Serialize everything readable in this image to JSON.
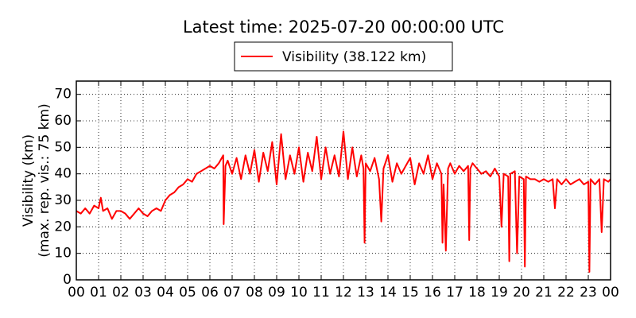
{
  "chart_data": {
    "type": "line",
    "title": "Latest time: 2025-07-20 00:00:00 UTC",
    "ylabel": [
      "Visibility (km)",
      "(max. rep. vis.: 75 km)"
    ],
    "grid": true,
    "xlim": [
      0,
      24
    ],
    "ylim": [
      0,
      75
    ],
    "yticks": [
      0,
      10,
      20,
      30,
      40,
      50,
      60,
      70
    ],
    "xticks": [
      {
        "value": 0,
        "label": "00"
      },
      {
        "value": 1,
        "label": "01"
      },
      {
        "value": 2,
        "label": "02"
      },
      {
        "value": 3,
        "label": "03"
      },
      {
        "value": 4,
        "label": "04"
      },
      {
        "value": 5,
        "label": "05"
      },
      {
        "value": 6,
        "label": "06"
      },
      {
        "value": 7,
        "label": "07"
      },
      {
        "value": 8,
        "label": "08"
      },
      {
        "value": 9,
        "label": "09"
      },
      {
        "value": 10,
        "label": "10"
      },
      {
        "value": 11,
        "label": "11"
      },
      {
        "value": 12,
        "label": "12"
      },
      {
        "value": 13,
        "label": "13"
      },
      {
        "value": 14,
        "label": "14"
      },
      {
        "value": 15,
        "label": "15"
      },
      {
        "value": 16,
        "label": "16"
      },
      {
        "value": 17,
        "label": "17"
      },
      {
        "value": 18,
        "label": "18"
      },
      {
        "value": 19,
        "label": "19"
      },
      {
        "value": 20,
        "label": "20"
      },
      {
        "value": 21,
        "label": "21"
      },
      {
        "value": 22,
        "label": "22"
      },
      {
        "value": 23,
        "label": "23"
      },
      {
        "value": 24,
        "label": "00"
      }
    ],
    "x": [
      0,
      0.2,
      0.4,
      0.6,
      0.8,
      1.0,
      1.1,
      1.2,
      1.4,
      1.6,
      1.8,
      2.0,
      2.2,
      2.4,
      2.6,
      2.8,
      3.0,
      3.2,
      3.4,
      3.6,
      3.8,
      4.0,
      4.2,
      4.4,
      4.6,
      4.8,
      5.0,
      5.2,
      5.4,
      5.6,
      5.8,
      6.0,
      6.2,
      6.4,
      6.6,
      6.62,
      6.7,
      6.8,
      7.0,
      7.2,
      7.4,
      7.6,
      7.8,
      8.0,
      8.2,
      8.4,
      8.6,
      8.8,
      9.0,
      9.2,
      9.4,
      9.6,
      9.8,
      10.0,
      10.2,
      10.4,
      10.6,
      10.8,
      11.0,
      11.2,
      11.4,
      11.6,
      11.8,
      12.0,
      12.2,
      12.4,
      12.6,
      12.8,
      12.9,
      12.95,
      13.0,
      13.2,
      13.4,
      13.6,
      13.7,
      13.8,
      14.0,
      14.2,
      14.4,
      14.6,
      14.8,
      15.0,
      15.2,
      15.4,
      15.6,
      15.8,
      16.0,
      16.2,
      16.4,
      16.45,
      16.5,
      16.6,
      16.7,
      16.8,
      17.0,
      17.2,
      17.4,
      17.6,
      17.65,
      17.7,
      17.8,
      18.0,
      18.2,
      18.4,
      18.6,
      18.8,
      19.0,
      19.1,
      19.2,
      19.4,
      19.45,
      19.5,
      19.7,
      19.8,
      19.9,
      20.1,
      20.15,
      20.2,
      20.4,
      20.6,
      20.8,
      21.0,
      21.2,
      21.4,
      21.5,
      21.6,
      21.8,
      22.0,
      22.2,
      22.4,
      22.6,
      22.8,
      23.0,
      23.05,
      23.1,
      23.3,
      23.5,
      23.6,
      23.7,
      23.9,
      24.0
    ],
    "series": [
      {
        "name": "Visibility (38.122 km)",
        "color": "#ff0000",
        "values": [
          26,
          25,
          27,
          25,
          28,
          27,
          31,
          26,
          27,
          23,
          26,
          26,
          25,
          23,
          25,
          27,
          25,
          24,
          26,
          27,
          26,
          30,
          32,
          33,
          35,
          36,
          38,
          37,
          40,
          41,
          42,
          43,
          42,
          44,
          47,
          21,
          43,
          45,
          40,
          46,
          38,
          47,
          40,
          49,
          37,
          48,
          41,
          52,
          36,
          55,
          38,
          47,
          40,
          50,
          37,
          48,
          41,
          54,
          38,
          50,
          40,
          47,
          39,
          56,
          38,
          50,
          39,
          47,
          42,
          14,
          44,
          41,
          46,
          38,
          22,
          42,
          47,
          37,
          44,
          40,
          43,
          46,
          36,
          44,
          40,
          47,
          38,
          44,
          40,
          14,
          36,
          11,
          42,
          44,
          40,
          43,
          41,
          43,
          15,
          42,
          44,
          42,
          40,
          41,
          39,
          42,
          39,
          20,
          40,
          39,
          7,
          40,
          41,
          10,
          39,
          38,
          5,
          39,
          38,
          38,
          37,
          38,
          37,
          38,
          27,
          38,
          36,
          38,
          36,
          37,
          38,
          36,
          37,
          3,
          38,
          36,
          38,
          18,
          38,
          37,
          38
        ]
      }
    ]
  }
}
